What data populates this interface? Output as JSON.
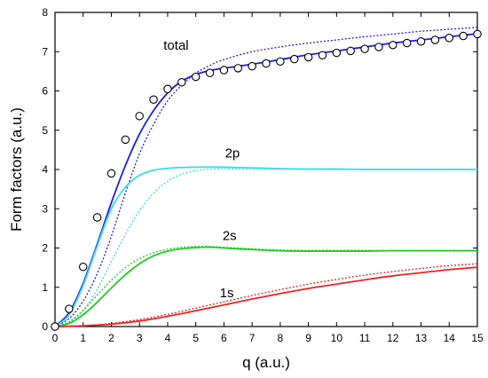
{
  "chart_data": {
    "type": "line",
    "title": "",
    "xlabel": "q (a.u.)",
    "ylabel": "Form factors (a.u.)",
    "xlim": [
      0,
      15
    ],
    "ylim": [
      0,
      8
    ],
    "xticks": [
      0,
      1,
      2,
      3,
      4,
      5,
      6,
      7,
      8,
      9,
      10,
      11,
      12,
      13,
      14,
      15
    ],
    "yticks": [
      0,
      1,
      2,
      3,
      4,
      5,
      6,
      7,
      8
    ],
    "grid": false,
    "legend": "none",
    "annotations": [
      {
        "text": "total",
        "x": 4.3,
        "y": 7.05
      },
      {
        "text": "2p",
        "x": 6.3,
        "y": 4.3
      },
      {
        "text": "2s",
        "x": 6.2,
        "y": 2.2
      },
      {
        "text": "1s",
        "x": 6.1,
        "y": 0.75
      }
    ],
    "series": [
      {
        "key": "total_solid",
        "color": "#1a1aff",
        "dash": false,
        "x": [
          0,
          0.5,
          1,
          1.5,
          2,
          2.5,
          3,
          3.5,
          4,
          4.5,
          5,
          5.5,
          6,
          7,
          8,
          9,
          10,
          11,
          12,
          13,
          14,
          15
        ],
        "y": [
          0,
          0.35,
          1.1,
          2.1,
          3.15,
          4.1,
          4.9,
          5.5,
          5.95,
          6.25,
          6.42,
          6.52,
          6.58,
          6.68,
          6.8,
          6.92,
          7.02,
          7.12,
          7.22,
          7.3,
          7.38,
          7.46
        ]
      },
      {
        "key": "total_dotted",
        "color": "#1a1aff",
        "dash": true,
        "x": [
          0,
          0.5,
          1,
          1.5,
          2,
          2.5,
          3,
          3.5,
          4,
          4.5,
          5,
          5.5,
          6,
          7,
          8,
          9,
          10,
          11,
          12,
          13,
          14,
          15
        ],
        "y": [
          0,
          0.2,
          0.65,
          1.35,
          2.3,
          3.4,
          4.4,
          5.15,
          5.75,
          6.15,
          6.45,
          6.65,
          6.8,
          7.0,
          7.12,
          7.22,
          7.3,
          7.38,
          7.45,
          7.52,
          7.57,
          7.62
        ]
      },
      {
        "key": "2p_solid",
        "color": "#33ddee",
        "dash": false,
        "x": [
          0,
          0.5,
          1,
          1.5,
          2,
          2.5,
          3,
          3.5,
          4,
          4.5,
          5,
          6,
          7,
          8,
          9,
          10,
          11,
          12,
          13,
          14,
          15
        ],
        "y": [
          0,
          0.3,
          1.05,
          2.05,
          3.0,
          3.55,
          3.85,
          3.98,
          4.03,
          4.05,
          4.06,
          4.06,
          4.04,
          4.02,
          4.01,
          4.01,
          4.0,
          4.0,
          4.0,
          4.0,
          4.0
        ]
      },
      {
        "key": "2p_dotted",
        "color": "#33ddee",
        "dash": true,
        "x": [
          0,
          0.5,
          1,
          1.5,
          2,
          2.5,
          3,
          3.5,
          4,
          4.5,
          5,
          5.5,
          6,
          7,
          8,
          9,
          10,
          11,
          12,
          13,
          14,
          15
        ],
        "y": [
          0,
          0.1,
          0.4,
          0.95,
          1.65,
          2.35,
          2.95,
          3.4,
          3.7,
          3.88,
          3.97,
          4.01,
          4.02,
          4.02,
          4.01,
          4.01,
          4.0,
          4.0,
          4.0,
          4.0,
          4.0,
          4.0
        ]
      },
      {
        "key": "2s_solid",
        "color": "#22cc22",
        "dash": false,
        "x": [
          0,
          0.5,
          1,
          1.5,
          2,
          2.5,
          3,
          3.5,
          4,
          4.5,
          5,
          5.5,
          6,
          7,
          8,
          9,
          10,
          11,
          12,
          13,
          14,
          15
        ],
        "y": [
          0,
          0.08,
          0.3,
          0.62,
          0.98,
          1.32,
          1.6,
          1.8,
          1.92,
          1.98,
          2.01,
          2.02,
          2.0,
          1.96,
          1.93,
          1.92,
          1.92,
          1.92,
          1.93,
          1.93,
          1.93,
          1.93
        ]
      },
      {
        "key": "2s_dotted",
        "color": "#22cc22",
        "dash": true,
        "x": [
          0,
          0.5,
          1,
          1.5,
          2,
          2.5,
          3,
          3.5,
          4,
          4.5,
          5,
          5.5,
          6,
          7,
          8,
          9,
          10,
          11,
          12,
          13,
          14,
          15
        ],
        "y": [
          0,
          0.12,
          0.42,
          0.8,
          1.18,
          1.5,
          1.73,
          1.88,
          1.97,
          2.02,
          2.04,
          2.04,
          2.02,
          1.98,
          1.95,
          1.94,
          1.94,
          1.94,
          1.94,
          1.94,
          1.94,
          1.94
        ]
      },
      {
        "key": "1s_solid",
        "color": "#ee2222",
        "dash": false,
        "x": [
          0,
          1,
          2,
          3,
          4,
          5,
          6,
          7,
          8,
          9,
          10,
          11,
          12,
          13,
          14,
          15
        ],
        "y": [
          0,
          0.02,
          0.06,
          0.14,
          0.26,
          0.4,
          0.55,
          0.7,
          0.84,
          0.97,
          1.08,
          1.19,
          1.29,
          1.37,
          1.45,
          1.51
        ]
      },
      {
        "key": "1s_dotted",
        "color": "#ee2222",
        "dash": true,
        "x": [
          0,
          1,
          2,
          3,
          4,
          5,
          6,
          7,
          8,
          9,
          10,
          11,
          12,
          13,
          14,
          15
        ],
        "y": [
          0,
          0.02,
          0.08,
          0.18,
          0.31,
          0.47,
          0.63,
          0.79,
          0.94,
          1.08,
          1.2,
          1.31,
          1.4,
          1.48,
          1.55,
          1.6
        ]
      }
    ],
    "markers": {
      "color": "#000000",
      "x": [
        0,
        0.5,
        1,
        1.5,
        2,
        2.5,
        3,
        3.5,
        4,
        4.5,
        5,
        5.5,
        6,
        6.5,
        7,
        7.5,
        8,
        8.5,
        9,
        9.5,
        10,
        10.5,
        11,
        11.5,
        12,
        12.5,
        13,
        13.5,
        14,
        14.5,
        15
      ],
      "y": [
        0,
        0.45,
        1.52,
        2.78,
        3.9,
        4.76,
        5.36,
        5.78,
        6.05,
        6.22,
        6.36,
        6.46,
        6.53,
        6.58,
        6.63,
        6.7,
        6.75,
        6.81,
        6.86,
        6.91,
        6.97,
        7.02,
        7.07,
        7.12,
        7.17,
        7.22,
        7.26,
        7.3,
        7.35,
        7.4,
        7.45
      ]
    }
  }
}
